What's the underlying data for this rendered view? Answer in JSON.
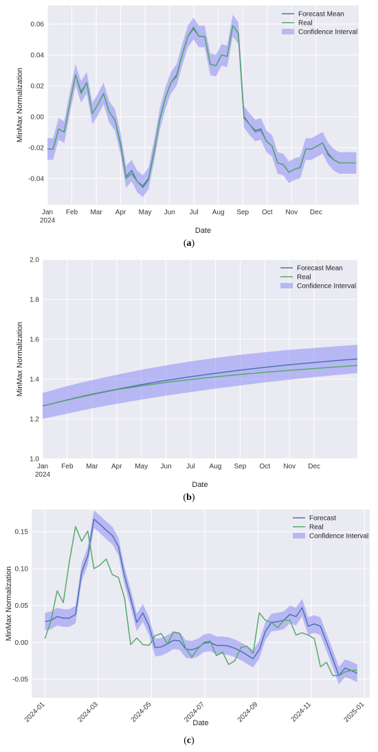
{
  "chart_data": [
    {
      "panel": "a",
      "type": "line",
      "caption": [
        "(",
        "a",
        ")"
      ],
      "xlabel": "Date",
      "ylabel": "MinMax Normalization",
      "xlim": [
        0,
        12.75
      ],
      "ylim": [
        -0.057,
        0.072
      ],
      "x_ticks": [
        {
          "v": 0,
          "label": "Jan"
        },
        {
          "v": 1,
          "label": "Feb"
        },
        {
          "v": 2,
          "label": "Mar"
        },
        {
          "v": 3,
          "label": "Apr"
        },
        {
          "v": 4,
          "label": "May"
        },
        {
          "v": 5,
          "label": "Jun"
        },
        {
          "v": 6,
          "label": "Jul"
        },
        {
          "v": 7,
          "label": "Aug"
        },
        {
          "v": 8,
          "label": "Sep"
        },
        {
          "v": 9,
          "label": "Oct"
        },
        {
          "v": 10,
          "label": "Nov"
        },
        {
          "v": 11,
          "label": "Dec"
        }
      ],
      "x_year_label": "2024",
      "y_ticks": [
        {
          "v": -0.04,
          "label": "-0.04"
        },
        {
          "v": -0.02,
          "label": "-0.02"
        },
        {
          "v": 0.0,
          "label": "0.00"
        },
        {
          "v": 0.02,
          "label": "0.02"
        },
        {
          "v": 0.04,
          "label": "0.04"
        },
        {
          "v": 0.06,
          "label": "0.06"
        }
      ],
      "grid": true,
      "legend_position": "top-right",
      "legend": [
        "Forecast Mean",
        "Real",
        "Confidence Interval"
      ],
      "ci_halfwidth": 0.007,
      "x": [
        0.0,
        0.23,
        0.46,
        0.69,
        0.92,
        1.15,
        1.38,
        1.61,
        1.84,
        2.07,
        2.3,
        2.53,
        2.76,
        2.99,
        3.22,
        3.45,
        3.68,
        3.91,
        4.14,
        4.37,
        4.6,
        4.83,
        5.06,
        5.29,
        5.52,
        5.75,
        5.98,
        6.21,
        6.44,
        6.67,
        6.9,
        7.13,
        7.36,
        7.59,
        7.82,
        8.05,
        8.28,
        8.51,
        8.74,
        8.97,
        9.2,
        9.43,
        9.66,
        9.89,
        10.12,
        10.35,
        10.58,
        10.81,
        11.04,
        11.27,
        11.5,
        11.73,
        11.96,
        12.19,
        12.42,
        12.65
      ],
      "series": [
        {
          "name": "Forecast Mean",
          "color": "#4c72b0",
          "values": [
            -0.021,
            -0.021,
            -0.008,
            -0.01,
            0.009,
            0.027,
            0.016,
            0.022,
            0.002,
            0.008,
            0.015,
            0.003,
            -0.002,
            -0.017,
            -0.039,
            -0.035,
            -0.042,
            -0.045,
            -0.04,
            -0.022,
            -0.002,
            0.012,
            0.022,
            0.027,
            0.04,
            0.052,
            0.057,
            0.052,
            0.052,
            0.034,
            0.033,
            0.04,
            0.039,
            0.059,
            0.054,
            0.0,
            -0.005,
            -0.009,
            -0.008,
            -0.016,
            -0.019,
            -0.03,
            -0.031,
            -0.036,
            -0.034,
            -0.033,
            -0.021,
            -0.021,
            -0.019,
            -0.017,
            -0.024,
            -0.028,
            -0.03,
            -0.03,
            -0.03,
            -0.03
          ]
        },
        {
          "name": "Real",
          "color": "#55a868",
          "values": [
            -0.021,
            -0.021,
            -0.008,
            -0.01,
            0.009,
            0.027,
            0.015,
            0.022,
            0.002,
            0.008,
            0.015,
            0.003,
            -0.002,
            -0.018,
            -0.04,
            -0.037,
            -0.042,
            -0.046,
            -0.041,
            -0.023,
            -0.002,
            0.012,
            0.022,
            0.026,
            0.04,
            0.052,
            0.058,
            0.052,
            0.052,
            0.034,
            0.033,
            0.04,
            0.039,
            0.059,
            0.054,
            -0.001,
            -0.005,
            -0.01,
            -0.009,
            -0.016,
            -0.019,
            -0.03,
            -0.031,
            -0.036,
            -0.034,
            -0.033,
            -0.021,
            -0.021,
            -0.019,
            -0.017,
            -0.025,
            -0.028,
            -0.03,
            -0.03,
            -0.03,
            -0.03
          ]
        }
      ]
    },
    {
      "panel": "b",
      "type": "line",
      "caption": [
        "(",
        "b",
        ")"
      ],
      "xlabel": "Date",
      "ylabel": "MinMax Normalization",
      "xlim": [
        0,
        12.75
      ],
      "ylim": [
        1.0,
        2.0
      ],
      "x_ticks": [
        {
          "v": 0,
          "label": "Jan"
        },
        {
          "v": 1,
          "label": "Feb"
        },
        {
          "v": 2,
          "label": "Mar"
        },
        {
          "v": 3,
          "label": "Apr"
        },
        {
          "v": 4,
          "label": "May"
        },
        {
          "v": 5,
          "label": "Jun"
        },
        {
          "v": 6,
          "label": "Jul"
        },
        {
          "v": 7,
          "label": "Aug"
        },
        {
          "v": 8,
          "label": "Sep"
        },
        {
          "v": 9,
          "label": "Oct"
        },
        {
          "v": 10,
          "label": "Nov"
        },
        {
          "v": 11,
          "label": "Dec"
        }
      ],
      "x_year_label": "2024",
      "y_ticks": [
        {
          "v": 1.0,
          "label": "1.0"
        },
        {
          "v": 1.2,
          "label": "1.2"
        },
        {
          "v": 1.4,
          "label": "1.4"
        },
        {
          "v": 1.6,
          "label": "1.6"
        },
        {
          "v": 1.8,
          "label": "1.8"
        },
        {
          "v": 2.0,
          "label": "2.0"
        }
      ],
      "grid": true,
      "legend_position": "top-right",
      "legend": [
        "Forecast Mean",
        "Real",
        "Confidence Interval"
      ],
      "x": [
        0,
        1,
        2,
        3,
        4,
        5,
        6,
        7,
        8,
        9,
        10,
        11,
        12,
        12.75
      ],
      "series": [
        {
          "name": "Forecast Mean",
          "color": "#4c72b0",
          "values": [
            1.265,
            1.296,
            1.324,
            1.349,
            1.372,
            1.393,
            1.412,
            1.429,
            1.445,
            1.459,
            1.472,
            1.483,
            1.494,
            1.501
          ],
          "ci_lower": [
            1.2,
            1.227,
            1.253,
            1.276,
            1.297,
            1.317,
            1.335,
            1.352,
            1.368,
            1.383,
            1.397,
            1.41,
            1.422,
            1.43
          ],
          "ci_upper": [
            1.33,
            1.365,
            1.395,
            1.422,
            1.447,
            1.469,
            1.489,
            1.506,
            1.522,
            1.535,
            1.547,
            1.556,
            1.566,
            1.572
          ]
        },
        {
          "name": "Real",
          "color": "#55a868",
          "values": [
            1.265,
            1.295,
            1.322,
            1.347,
            1.366,
            1.383,
            1.398,
            1.411,
            1.423,
            1.434,
            1.444,
            1.453,
            1.462,
            1.468
          ]
        }
      ]
    },
    {
      "panel": "c",
      "type": "line",
      "caption": [
        "(",
        "c",
        ")"
      ],
      "xlabel": "Date",
      "ylabel": "MinMax Normalization",
      "xlim": [
        -0.5,
        12.2
      ],
      "ylim": [
        -0.075,
        0.18
      ],
      "x_ticks": [
        {
          "v": 0,
          "label": "2024-01"
        },
        {
          "v": 2,
          "label": "2024-03"
        },
        {
          "v": 4,
          "label": "2024-05"
        },
        {
          "v": 6,
          "label": "2024-07"
        },
        {
          "v": 8,
          "label": "2024-09"
        },
        {
          "v": 10,
          "label": "2024-11"
        },
        {
          "v": 12,
          "label": "2025-01"
        }
      ],
      "y_ticks": [
        {
          "v": -0.05,
          "label": "-0.05"
        },
        {
          "v": 0.0,
          "label": "0.00"
        },
        {
          "v": 0.05,
          "label": "0.05"
        },
        {
          "v": 0.1,
          "label": "0.10"
        },
        {
          "v": 0.15,
          "label": "0.15"
        }
      ],
      "grid": true,
      "legend_position": "top-right",
      "legend": [
        "Forecast",
        "Real",
        "Confidence Interval"
      ],
      "ci_halfwidth": 0.012,
      "x": [
        0.0,
        0.23,
        0.46,
        0.69,
        0.92,
        1.15,
        1.38,
        1.61,
        1.84,
        2.07,
        2.3,
        2.53,
        2.76,
        2.99,
        3.22,
        3.45,
        3.68,
        3.91,
        4.14,
        4.37,
        4.6,
        4.83,
        5.06,
        5.29,
        5.52,
        5.75,
        5.98,
        6.21,
        6.44,
        6.67,
        6.9,
        7.13,
        7.36,
        7.59,
        7.82,
        8.05,
        8.28,
        8.51,
        8.74,
        8.97,
        9.2,
        9.43,
        9.66,
        9.89,
        10.12,
        10.35,
        10.58,
        10.81,
        11.04,
        11.27,
        11.5,
        11.73
      ],
      "series": [
        {
          "name": "Forecast",
          "color": "#4c72b0",
          "values": [
            0.028,
            0.03,
            0.035,
            0.033,
            0.033,
            0.038,
            0.095,
            0.117,
            0.167,
            0.16,
            0.152,
            0.145,
            0.13,
            0.09,
            0.06,
            0.027,
            0.04,
            0.022,
            -0.007,
            -0.006,
            -0.002,
            0.003,
            0.002,
            -0.009,
            -0.01,
            -0.007,
            -0.001,
            0.0,
            -0.004,
            -0.004,
            -0.005,
            -0.008,
            -0.012,
            -0.017,
            -0.022,
            -0.01,
            0.015,
            0.027,
            0.028,
            0.03,
            0.038,
            0.035,
            0.047,
            0.022,
            0.025,
            0.022,
            0.0,
            -0.022,
            -0.045,
            -0.035,
            -0.038,
            -0.042
          ]
        },
        {
          "name": "Real",
          "color": "#55a868",
          "values": [
            0.005,
            0.03,
            0.07,
            0.054,
            0.11,
            0.157,
            0.137,
            0.151,
            0.1,
            0.105,
            0.113,
            0.092,
            0.088,
            0.06,
            -0.003,
            0.006,
            -0.003,
            -0.004,
            0.009,
            0.012,
            -0.002,
            0.014,
            0.012,
            -0.008,
            -0.02,
            -0.008,
            0.0,
            0.002,
            -0.018,
            -0.013,
            -0.03,
            -0.025,
            -0.007,
            -0.005,
            -0.015,
            0.04,
            0.03,
            0.027,
            0.02,
            0.03,
            0.03,
            0.01,
            0.013,
            0.01,
            0.005,
            -0.033,
            -0.027,
            -0.045,
            -0.045,
            -0.04,
            -0.038,
            -0.038
          ]
        }
      ]
    }
  ]
}
